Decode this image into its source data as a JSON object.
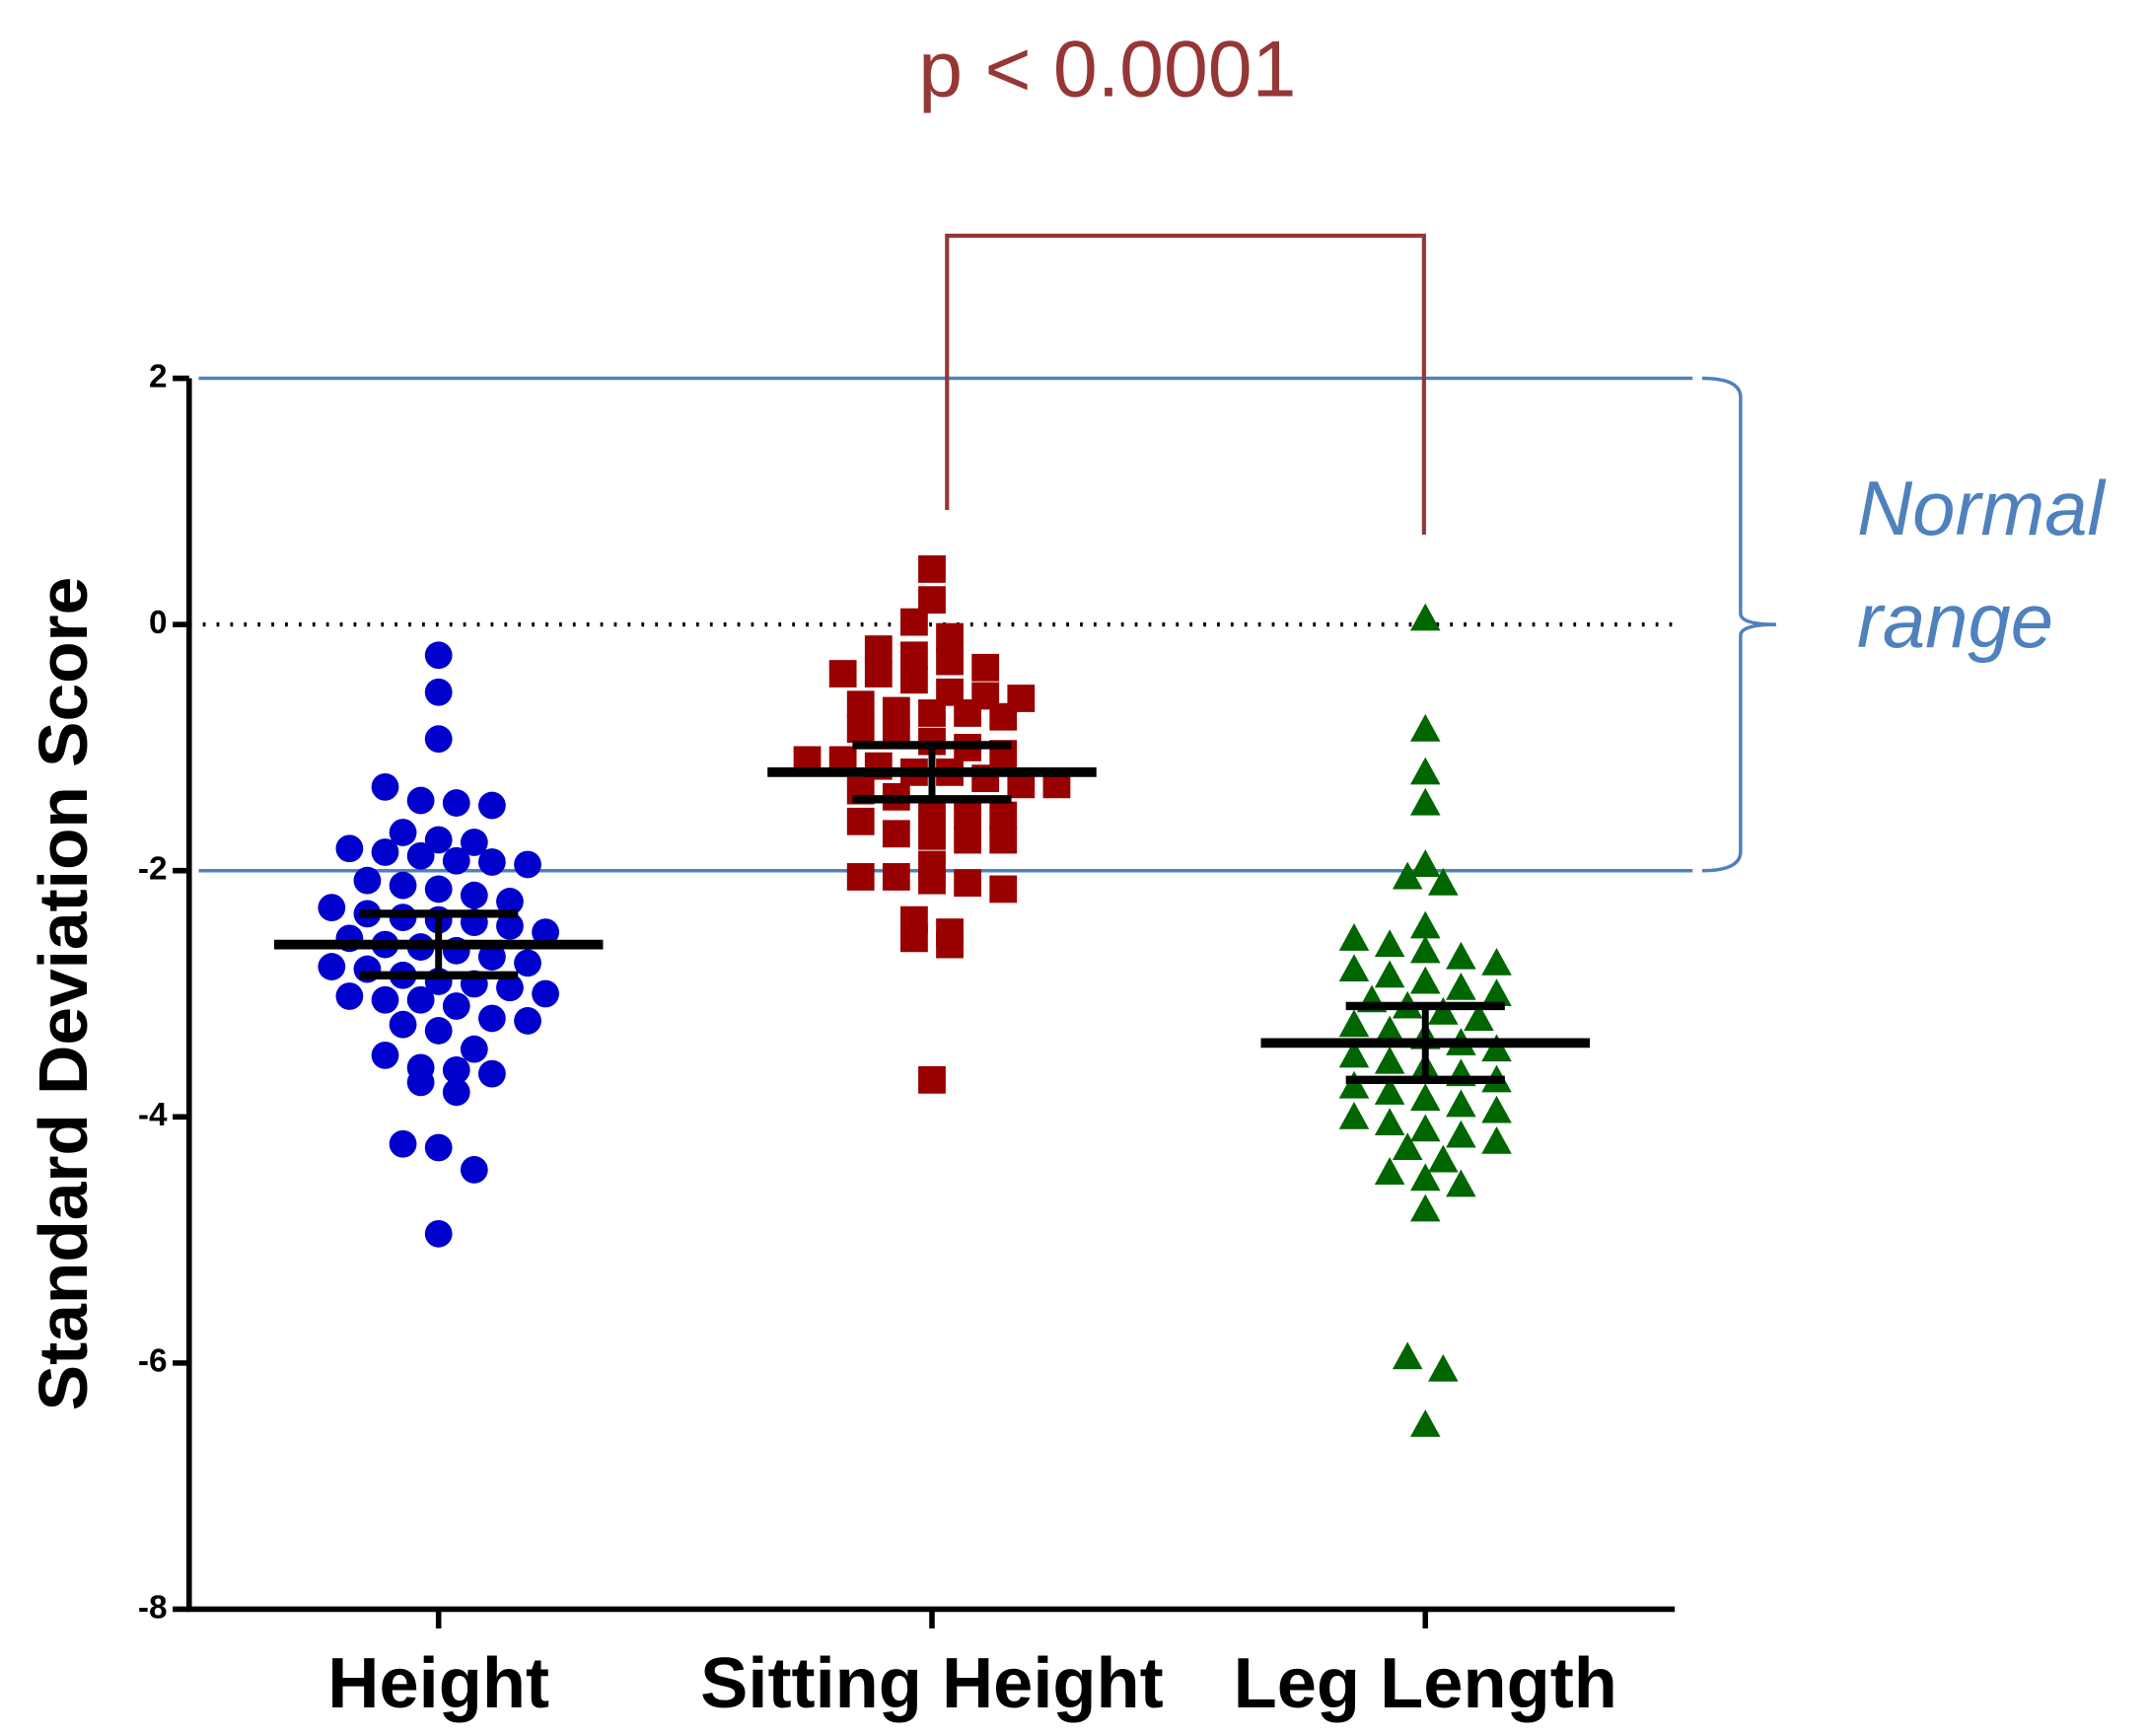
{
  "chart_data": {
    "type": "strip",
    "y_label": "Standard Deviation Score",
    "categories": [
      "Height",
      "Sitting Height",
      "Leg Length"
    ],
    "ylim": [
      -8,
      2
    ],
    "yticks": [
      -8,
      -6,
      -4,
      -2,
      0,
      2
    ],
    "reference_line": 0,
    "normal_range": [
      -2,
      2
    ],
    "normal_range_label": "Normal range",
    "significance": {
      "label": "p < 0.0001",
      "between": [
        1,
        2
      ]
    },
    "series": [
      {
        "name": "Height",
        "color": "#0000cc",
        "marker": "circle",
        "mean": -2.6,
        "sem": 0.25,
        "values": [
          -0.25,
          -0.55,
          -0.93,
          -1.32,
          -1.43,
          -1.45,
          -1.47,
          -1.69,
          -1.75,
          -1.77,
          -1.82,
          -1.85,
          -1.88,
          -1.92,
          -1.93,
          -1.95,
          -2.08,
          -2.12,
          -2.15,
          -2.2,
          -2.25,
          -2.3,
          -2.35,
          -2.38,
          -2.4,
          -2.42,
          -2.45,
          -2.5,
          -2.55,
          -2.6,
          -2.62,
          -2.65,
          -2.7,
          -2.75,
          -2.78,
          -2.8,
          -2.85,
          -2.9,
          -2.92,
          -2.95,
          -3.0,
          -3.02,
          -3.05,
          -3.05,
          -3.1,
          -3.2,
          -3.22,
          -3.25,
          -3.3,
          -3.45,
          -3.5,
          -3.6,
          -3.62,
          -3.65,
          -3.72,
          -3.8,
          -4.22,
          -4.25,
          -4.43,
          -4.95
        ]
      },
      {
        "name": "Sitting Height",
        "color": "#990000",
        "marker": "square",
        "mean": -1.2,
        "sem": 0.22,
        "values": [
          0.45,
          0.2,
          0.02,
          -0.1,
          -0.2,
          -0.25,
          -0.3,
          -0.35,
          -0.4,
          -0.4,
          -0.45,
          -0.55,
          -0.58,
          -0.6,
          -0.65,
          -0.7,
          -0.72,
          -0.72,
          -0.75,
          -0.85,
          -0.9,
          -0.95,
          -1.0,
          -1.05,
          -1.1,
          -1.1,
          -1.15,
          -1.2,
          -1.2,
          -1.25,
          -1.3,
          -1.3,
          -1.35,
          -1.4,
          -1.5,
          -1.55,
          -1.55,
          -1.6,
          -1.7,
          -1.72,
          -1.75,
          -1.75,
          -1.95,
          -2.05,
          -2.05,
          -2.08,
          -2.1,
          -2.15,
          -2.4,
          -2.5,
          -2.55,
          -2.6,
          -3.7
        ]
      },
      {
        "name": "Leg Length",
        "color": "#006600",
        "marker": "triangle",
        "mean": -3.4,
        "sem": 0.3,
        "values": [
          0.05,
          -0.85,
          -1.2,
          -1.45,
          -1.95,
          -2.05,
          -2.1,
          -2.45,
          -2.55,
          -2.6,
          -2.65,
          -2.7,
          -2.75,
          -2.8,
          -2.85,
          -2.9,
          -2.95,
          -3.0,
          -3.05,
          -3.1,
          -3.15,
          -3.2,
          -3.25,
          -3.3,
          -3.35,
          -3.4,
          -3.45,
          -3.5,
          -3.55,
          -3.6,
          -3.65,
          -3.7,
          -3.75,
          -3.8,
          -3.85,
          -3.9,
          -3.95,
          -4.0,
          -4.05,
          -4.1,
          -4.15,
          -4.2,
          -4.25,
          -4.35,
          -4.45,
          -4.5,
          -4.55,
          -4.75,
          -5.95,
          -6.05,
          -6.5
        ]
      }
    ]
  }
}
